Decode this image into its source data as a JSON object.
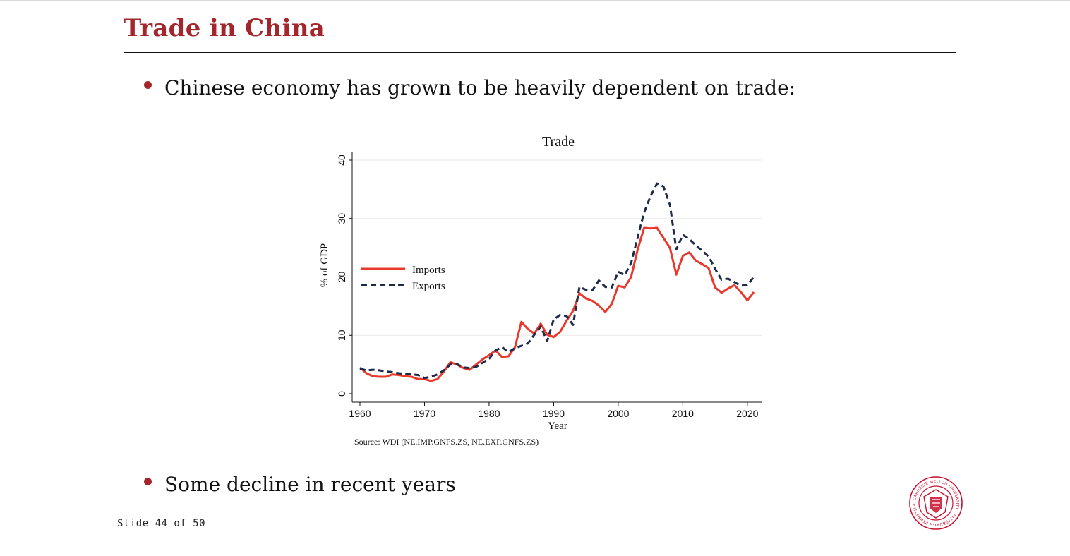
{
  "slide": {
    "title": "Trade in China",
    "bullets": [
      "Chinese economy has grown to be heavily dependent on trade:",
      "Some decline in recent years"
    ],
    "counter": "Slide 44 of 50",
    "accent_color": "#a3262c",
    "logo": {
      "name": "carnegie-mellon-seal",
      "text": "CARNEGIE MELLON UNIVERSITY · PITTSBURGH PENNSYLVANIA 1900"
    }
  },
  "chart_data": {
    "type": "line",
    "title": "Trade",
    "xlabel": "Year",
    "ylabel": "% of GDP",
    "source": "Source: WDI (NE.IMP.GNFS.ZS, NE.EXP.GNFS.ZS)",
    "xlim": [
      1960,
      2021
    ],
    "ylim": [
      0,
      40
    ],
    "xticks": [
      1960,
      1970,
      1980,
      1990,
      2000,
      2010,
      2020
    ],
    "yticks": [
      0,
      10,
      20,
      30,
      40
    ],
    "grid": true,
    "legend_position": "left",
    "x": [
      1960,
      1961,
      1962,
      1963,
      1964,
      1965,
      1966,
      1967,
      1968,
      1969,
      1970,
      1971,
      1972,
      1973,
      1974,
      1975,
      1976,
      1977,
      1978,
      1979,
      1980,
      1981,
      1982,
      1983,
      1984,
      1985,
      1986,
      1987,
      1988,
      1989,
      1990,
      1991,
      1992,
      1993,
      1994,
      1995,
      1996,
      1997,
      1998,
      1999,
      2000,
      2001,
      2002,
      2003,
      2004,
      2005,
      2006,
      2007,
      2008,
      2009,
      2010,
      2011,
      2012,
      2013,
      2014,
      2015,
      2016,
      2017,
      2018,
      2019,
      2020,
      2021
    ],
    "series": [
      {
        "name": "Imports",
        "color": "#e8392c",
        "style": "solid",
        "values": [
          4.5,
          3.5,
          3.0,
          2.9,
          2.9,
          3.3,
          3.2,
          3.0,
          2.9,
          2.5,
          2.5,
          2.2,
          2.5,
          3.8,
          5.4,
          5.0,
          4.4,
          4.1,
          5.0,
          5.9,
          6.6,
          7.4,
          6.3,
          6.4,
          7.9,
          12.3,
          11.1,
          10.3,
          12.0,
          10.1,
          9.7,
          10.6,
          12.5,
          14.2,
          17.2,
          16.3,
          15.9,
          15.1,
          14.0,
          15.4,
          18.5,
          18.2,
          20.0,
          24.6,
          28.4,
          28.3,
          28.4,
          26.7,
          25.0,
          20.4,
          23.6,
          24.2,
          22.8,
          22.2,
          21.5,
          18.2,
          17.3,
          18.0,
          18.6,
          17.4,
          16.0,
          17.4
        ]
      },
      {
        "name": "Exports",
        "color": "#1e2a4a",
        "style": "dashed",
        "values": [
          4.3,
          4.0,
          4.1,
          4.0,
          3.8,
          3.7,
          3.5,
          3.4,
          3.3,
          3.2,
          2.7,
          2.9,
          3.3,
          4.0,
          5.0,
          5.1,
          4.5,
          4.4,
          4.6,
          5.3,
          6.0,
          7.4,
          8.0,
          7.1,
          7.8,
          8.2,
          8.6,
          10.1,
          11.5,
          9.0,
          12.7,
          13.5,
          13.3,
          11.8,
          18.3,
          17.8,
          17.7,
          19.4,
          18.3,
          18.2,
          20.9,
          20.3,
          22.4,
          26.7,
          31.0,
          33.8,
          36.0,
          35.5,
          32.4,
          24.7,
          27.2,
          26.5,
          25.4,
          24.5,
          23.5,
          21.4,
          19.5,
          19.7,
          19.1,
          18.5,
          18.6,
          20.0
        ]
      }
    ]
  }
}
